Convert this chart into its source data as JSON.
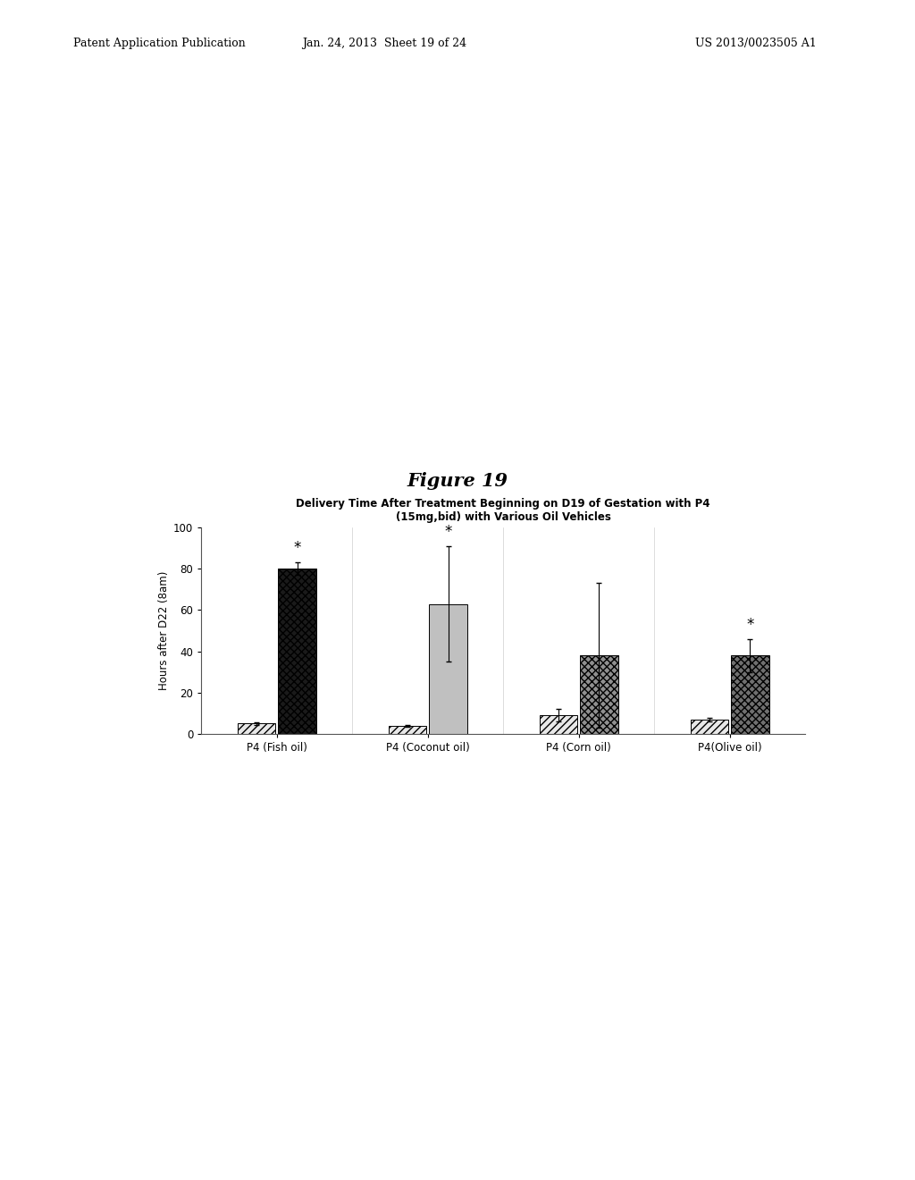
{
  "title_line1": "Delivery Time After Treatment Beginning on D19 of Gestation with P4",
  "title_line2": "(15mg,bid) with Various Oil Vehicles",
  "ylabel": "Hours after D22 (8am)",
  "ylim": [
    0,
    100
  ],
  "yticks": [
    0,
    20,
    40,
    60,
    80,
    100
  ],
  "groups": [
    "P4 (Fish oil)",
    "P4 (Coconut oil)",
    "P4 (Corn oil)",
    "P4(Olive oil)"
  ],
  "bar1_values": [
    5,
    4,
    9,
    7
  ],
  "bar1_errors": [
    0.5,
    0.5,
    3,
    1
  ],
  "bar2_values": [
    80,
    63,
    38,
    38
  ],
  "bar2_errors": [
    3,
    28,
    35,
    8
  ],
  "significance": [
    true,
    true,
    false,
    true
  ],
  "figure_title": "Figure 19",
  "header_left": "Patent Application Publication",
  "header_center": "Jan. 24, 2013  Sheet 19 of 24",
  "header_right": "US 2013/0023505 A1"
}
